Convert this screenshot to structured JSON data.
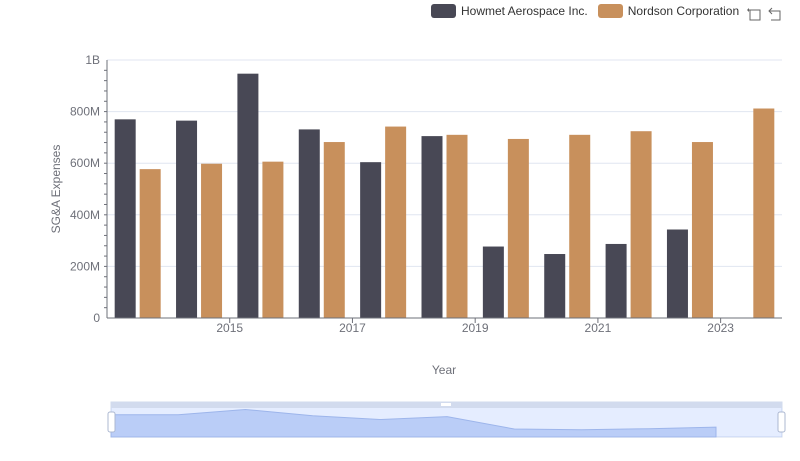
{
  "legend": [
    {
      "label": "Howmet Aerospace Inc.",
      "color": "#484855"
    },
    {
      "label": "Nordson Corporation",
      "color": "#c8905c"
    }
  ],
  "toolbox": [
    {
      "icon": "zoom-icon"
    },
    {
      "icon": "restore-icon"
    }
  ],
  "chart_data": {
    "type": "bar",
    "x": [
      2014,
      2015,
      2016,
      2017,
      2018,
      2019,
      2020,
      2021,
      2022,
      2023,
      2024
    ],
    "x_tick_labels": [
      "2015",
      "2017",
      "2019",
      "2021",
      "2023"
    ],
    "xlabel": "Year",
    "ylabel": "SG&A Expenses",
    "ylim": [
      0,
      1000000000
    ],
    "y_tick_labels": [
      "0",
      "200M",
      "400M",
      "600M",
      "800M",
      "1B"
    ],
    "grid": true,
    "legend_position": "top-right",
    "series": [
      {
        "name": "Howmet Aerospace Inc.",
        "color": "#484855",
        "values": [
          770000000,
          765000000,
          947000000,
          731000000,
          604000000,
          705000000,
          277000000,
          248000000,
          287000000,
          343000000,
          null
        ]
      },
      {
        "name": "Nordson Corporation",
        "color": "#c8905c",
        "values": [
          577000000,
          598000000,
          606000000,
          682000000,
          742000000,
          710000000,
          694000000,
          710000000,
          724000000,
          682000000,
          812000000
        ]
      }
    ]
  }
}
